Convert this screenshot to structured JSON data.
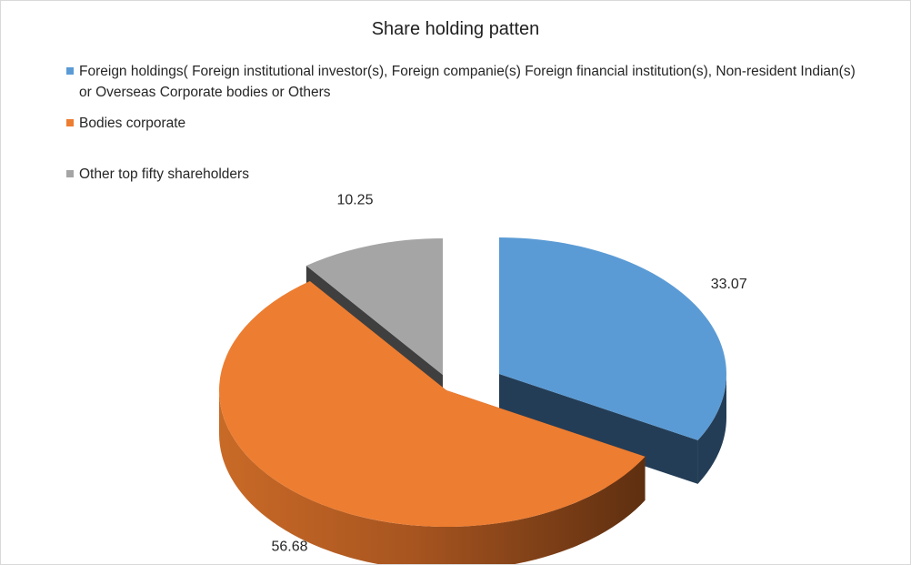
{
  "chart_data": {
    "type": "pie",
    "style": "3d-exploded",
    "title": "Share holding patten",
    "legend_position": "top-left",
    "slices": [
      {
        "name": "Foreign holdings( Foreign institutional investor(s), Foreign companie(s) Foreign financial institution(s), Non-resident Indian(s) or Overseas Corporate bodies or Others",
        "value": 33.07,
        "label": "33.07",
        "color": "#5B9BD5",
        "side_color": "#243D56"
      },
      {
        "name": "Bodies corporate",
        "value": 56.68,
        "label": "56.68",
        "color": "#ED7D31",
        "side_color": "#9A4F1C"
      },
      {
        "name": "Other top fifty shareholders",
        "value": 10.25,
        "label": "10.25",
        "color": "#A5A5A5",
        "side_color": "#3F3F3F"
      }
    ]
  }
}
